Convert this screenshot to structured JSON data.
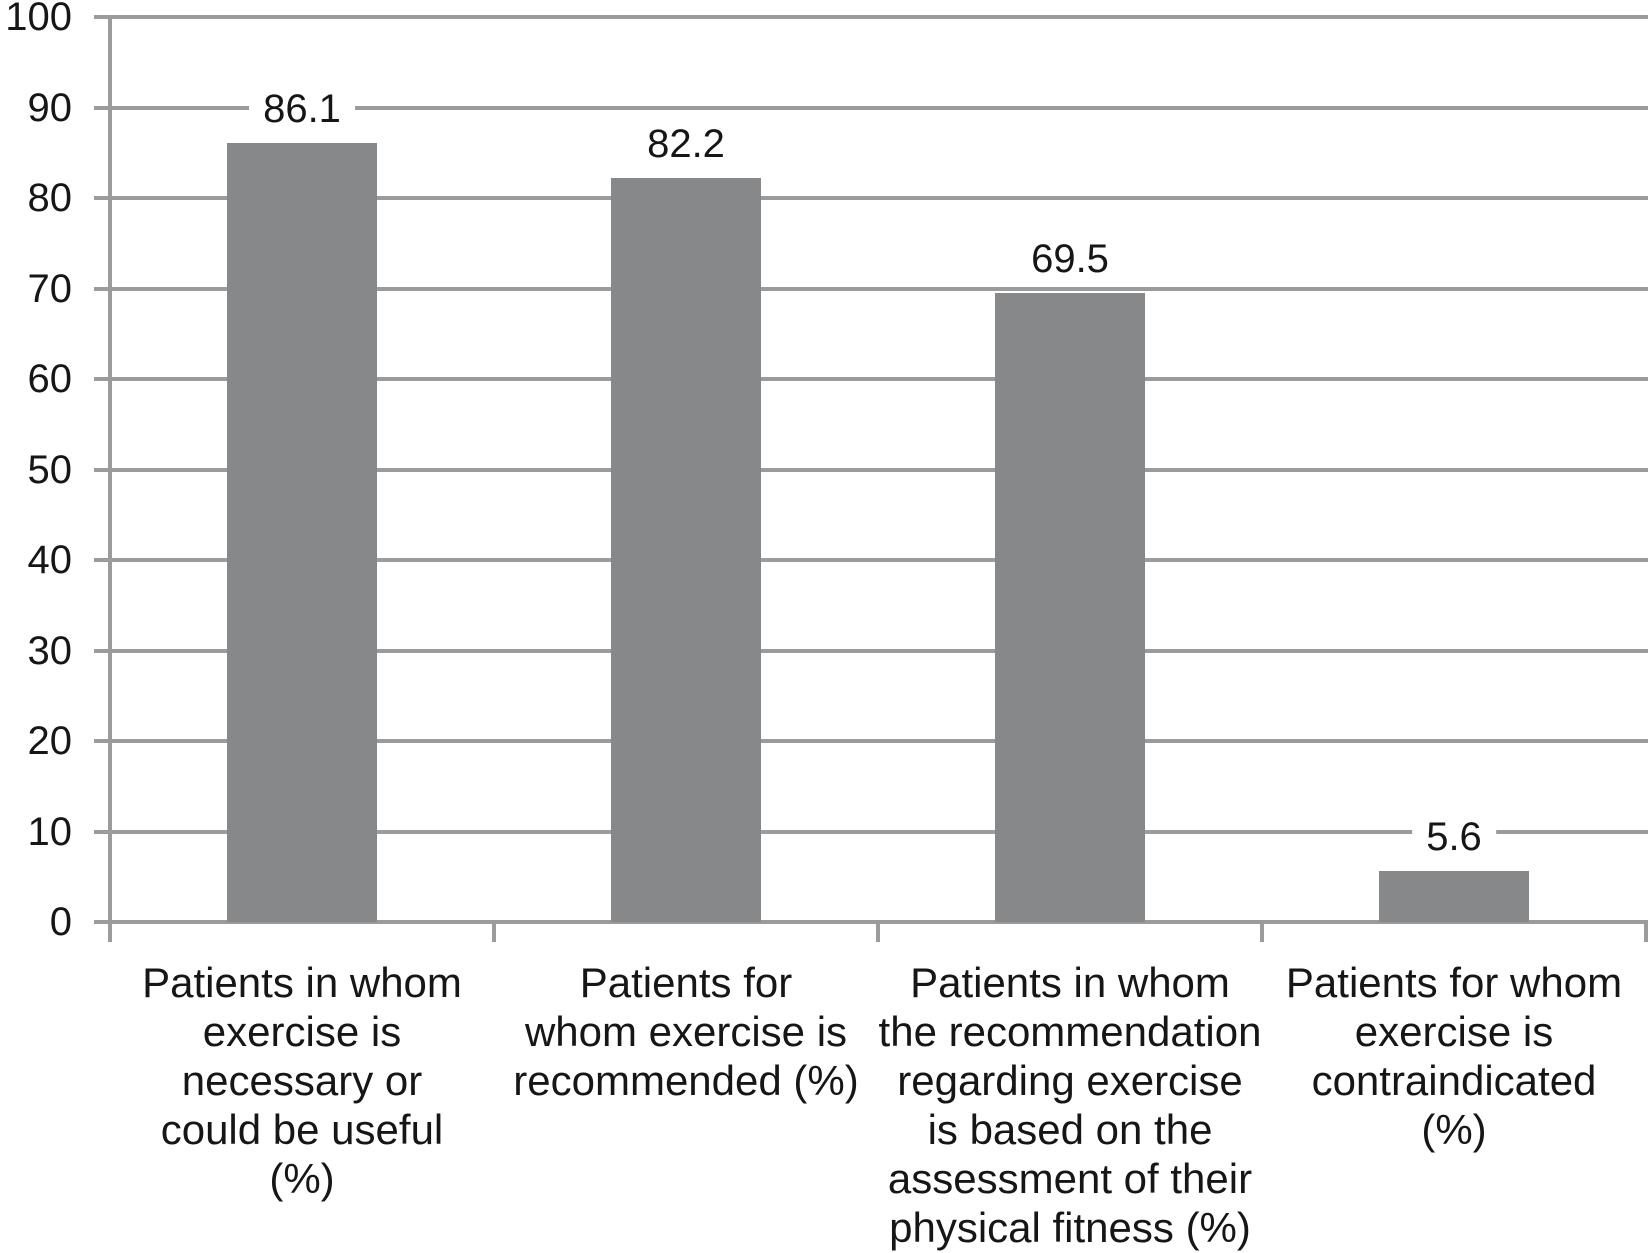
{
  "chart_data": {
    "type": "bar",
    "title": "",
    "xlabel": "",
    "ylabel": "",
    "categories": [
      "Patients in whom exercise is necessary or could be useful (%)",
      "Patients for whom exercise is recommended (%)",
      "Patients in whom the recommendation regarding exercise is based on the assessment of their physical fitness (%)",
      "Patients for whom exercise is contraindicated (%)"
    ],
    "categories_wrapped": [
      "Patients in whom\nexercise is\nnecessary or\ncould be useful\n(%)",
      "Patients for\nwhom exercise is\nrecommended (%)",
      "Patients in whom\nthe recommendation\nregarding exercise\nis based on the\nassessment of their\nphysical fitness (%)",
      "Patients for whom\nexercise is\ncontraindicated\n(%)"
    ],
    "values": [
      86.1,
      82.2,
      69.5,
      5.6
    ],
    "value_labels": [
      "86.1",
      "82.2",
      "69.5",
      "5.6"
    ],
    "y_ticks": [
      100,
      90,
      80,
      70,
      60,
      50,
      40,
      30,
      20,
      10,
      0
    ],
    "ylim": [
      0,
      100
    ],
    "grid": "horizontal-only",
    "legend": "none",
    "colors": {
      "bar": "#878889",
      "gridline": "#9b9b9b",
      "axis": "#9b9b9b",
      "text": "#161616",
      "background": "#ffffff"
    }
  }
}
